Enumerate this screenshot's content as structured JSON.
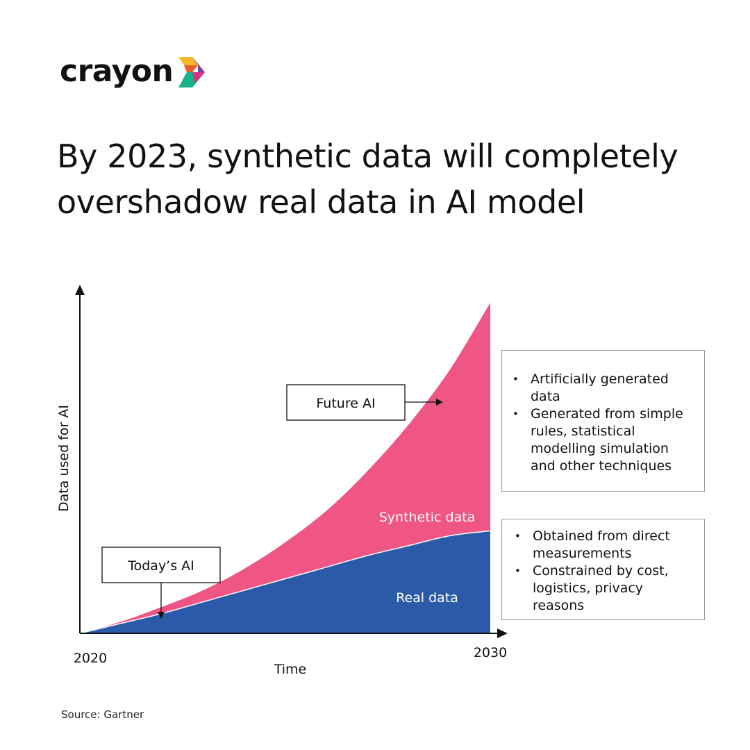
{
  "brand": {
    "name": "crayon",
    "colors": {
      "yellow": "#f5b82e",
      "orange": "#e85d2c",
      "purple": "#7b3fa0",
      "green": "#17b18a",
      "magenta": "#d63384"
    }
  },
  "headline": "By 2023, synthetic data will completely overshadow real data in AI model",
  "source": "Source: Gartner",
  "colors": {
    "synthetic": "#ef5585",
    "real": "#2b5aa8",
    "axis": "#111111",
    "box_border": "#9a9a9a"
  },
  "callouts": {
    "future_ai": "Future AI",
    "todays_ai": "Today’s AI"
  },
  "synthetic_box": {
    "bullets": [
      "Artificially generated data",
      "Generated from simple rules, statistical modelling simulation and other techniques"
    ]
  },
  "real_box": {
    "bullets": [
      "Obtained from direct measurements",
      "Constrained by cost, logistics, privacy reasons"
    ]
  },
  "chart_data": {
    "type": "area",
    "stacked": true,
    "xlabel": "Time",
    "ylabel": "Data used for AI",
    "x_start_label": "2020",
    "x_end_label": "2030",
    "xlim": [
      2020,
      2030
    ],
    "ylim": [
      0,
      100
    ],
    "x": [
      2020,
      2021,
      2022,
      2023,
      2024,
      2025,
      2026,
      2027,
      2028,
      2029,
      2030
    ],
    "series": [
      {
        "name": "Real data",
        "values": [
          0,
          3,
          6,
          9.5,
          13,
          16.5,
          20,
          23.5,
          26.5,
          29.5,
          31
        ]
      },
      {
        "name": "Synthetic data",
        "values": [
          0,
          0.5,
          2,
          3.5,
          6.5,
          11,
          17,
          25.5,
          36.5,
          50,
          69
        ]
      }
    ],
    "annotations": [
      {
        "text": "Today’s AI",
        "x": 2021.95,
        "y": 4
      },
      {
        "text": "Future AI",
        "x": 2029.1,
        "y": 70
      }
    ]
  }
}
